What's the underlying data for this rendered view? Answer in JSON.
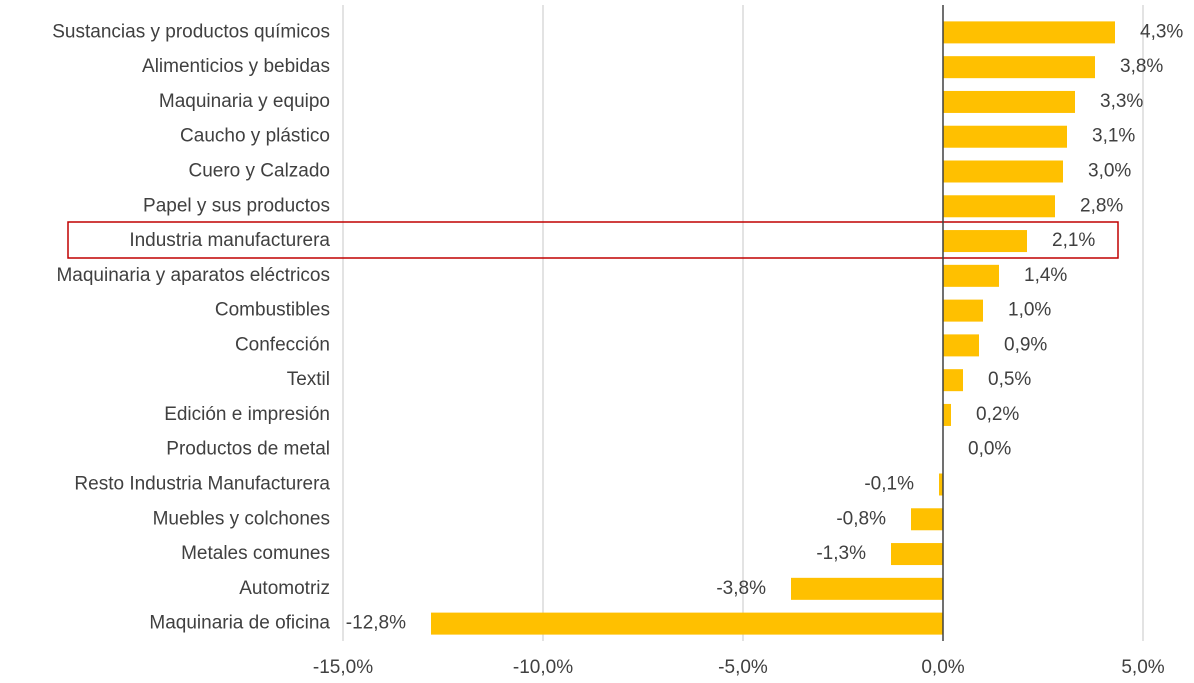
{
  "chart_data": {
    "type": "barh",
    "categories": [
      "Sustancias y productos químicos",
      "Alimenticios y bebidas",
      "Maquinaria y equipo",
      "Caucho y plástico",
      "Cuero y Calzado",
      "Papel y sus productos",
      "Industria manufacturera",
      "Maquinaria y aparatos eléctricos",
      "Combustibles",
      "Confección",
      "Textil",
      "Edición e impresión",
      "Productos de metal",
      "Resto Industria Manufacturera",
      "Muebles y colchones",
      "Metales comunes",
      "Automotriz",
      "Maquinaria de oficina"
    ],
    "values": [
      4.3,
      3.8,
      3.3,
      3.1,
      3.0,
      2.8,
      2.1,
      1.4,
      1.0,
      0.9,
      0.5,
      0.2,
      0.0,
      -0.1,
      -0.8,
      -1.3,
      -3.8,
      -12.8
    ],
    "value_labels": [
      "4,3%",
      "3,8%",
      "3,3%",
      "3,1%",
      "3,0%",
      "2,8%",
      "2,1%",
      "1,4%",
      "1,0%",
      "0,9%",
      "0,5%",
      "0,2%",
      "0,0%",
      "-0,1%",
      "-0,8%",
      "-1,3%",
      "-3,8%",
      "-12,8%"
    ],
    "color": "#ffc000",
    "xlim": [
      -15,
      5
    ],
    "xticks": [
      {
        "value": -15,
        "label": "-15,0%"
      },
      {
        "value": -10,
        "label": "-10,0%"
      },
      {
        "value": -5,
        "label": "-5,0%"
      },
      {
        "value": 0,
        "label": "0,0%"
      },
      {
        "value": 5,
        "label": "5,0%"
      }
    ],
    "grid": true
  }
}
